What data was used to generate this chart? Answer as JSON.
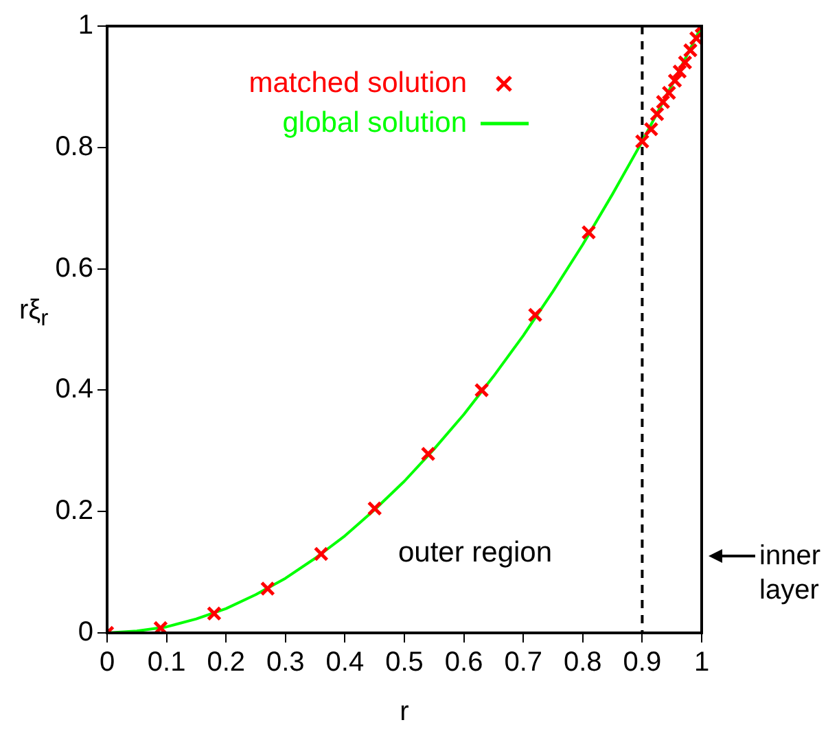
{
  "chart_data": {
    "type": "line",
    "xlabel": "r",
    "ylabel": "rξ$_{r}$",
    "xlim": [
      0,
      1
    ],
    "ylim": [
      0,
      1
    ],
    "xticks": [
      0,
      0.1,
      0.2,
      0.3,
      0.4,
      0.5,
      0.6,
      0.7,
      0.8,
      0.9,
      1
    ],
    "yticks": [
      0,
      0.2,
      0.4,
      0.6,
      0.8,
      1
    ],
    "grid": false,
    "legend": "top left",
    "series": [
      {
        "name": "matched solution",
        "type": "scatter",
        "marker": "cross",
        "color": "#ff0000",
        "x": [
          0,
          0.09,
          0.18,
          0.27,
          0.36,
          0.45,
          0.54,
          0.63,
          0.72,
          0.81,
          0.9,
          0.915,
          0.925,
          0.935,
          0.945,
          0.955,
          0.963,
          0.972,
          0.981,
          0.991,
          1
        ],
        "values": [
          0,
          0.008,
          0.032,
          0.073,
          0.13,
          0.205,
          0.295,
          0.4,
          0.524,
          0.66,
          0.81,
          0.83,
          0.855,
          0.875,
          0.89,
          0.91,
          0.925,
          0.94,
          0.96,
          0.98,
          1
        ]
      },
      {
        "name": "global solution",
        "marker": "none",
        "line_style": "solid",
        "color": "#00ff00",
        "x": [
          0,
          0.05,
          0.1,
          0.15,
          0.2,
          0.25,
          0.3,
          0.35,
          0.4,
          0.45,
          0.5,
          0.55,
          0.6,
          0.65,
          0.7,
          0.75,
          0.8,
          0.85,
          0.9,
          0.95,
          1
        ],
        "values": [
          0,
          0.003,
          0.01,
          0.023,
          0.04,
          0.063,
          0.09,
          0.123,
          0.16,
          0.203,
          0.25,
          0.303,
          0.36,
          0.423,
          0.49,
          0.563,
          0.64,
          0.723,
          0.81,
          0.903,
          1
        ]
      }
    ],
    "ref_lines": [
      {
        "axis": "x",
        "value": 0.9,
        "color": "#000000",
        "line_style": "dashed"
      }
    ],
    "annotations": [
      "outer region",
      "inner layer"
    ]
  }
}
